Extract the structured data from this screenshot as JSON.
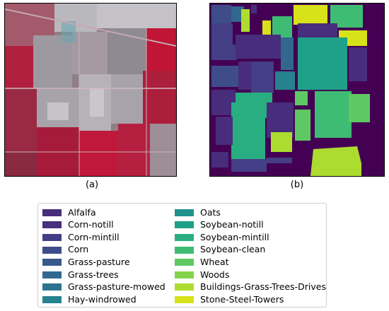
{
  "captions": {
    "a": "(a)",
    "b": "(b)"
  },
  "panel_a": {
    "description_icon": "false-color-satellite-image"
  },
  "panel_b": {
    "background_color": "#440154"
  },
  "legend": {
    "column1": [
      {
        "label": "Alfalfa",
        "color": "#472d7b"
      },
      {
        "label": "Corn-notill",
        "color": "#48307f"
      },
      {
        "label": "Corn-mintill",
        "color": "#433e85"
      },
      {
        "label": "Corn",
        "color": "#3e4c8a"
      },
      {
        "label": "Grass-pasture",
        "color": "#38598c"
      },
      {
        "label": "Grass-trees",
        "color": "#31688e"
      },
      {
        "label": "Grass-pasture-mowed",
        "color": "#2c738e"
      },
      {
        "label": "Hay-windrowed",
        "color": "#26828e"
      }
    ],
    "column2": [
      {
        "label": "Oats",
        "color": "#21918c"
      },
      {
        "label": "Soybean-notill",
        "color": "#1fa088"
      },
      {
        "label": "Soybean-mintill",
        "color": "#28ae80"
      },
      {
        "label": "Soybean-clean",
        "color": "#3fbc73"
      },
      {
        "label": "Wheat",
        "color": "#5ec962"
      },
      {
        "label": "Woods",
        "color": "#84d44b"
      },
      {
        "label": "Buildings-Grass-Trees-Drives",
        "color": "#addc30"
      },
      {
        "label": "Stone-Steel-Towers",
        "color": "#d8e219"
      }
    ]
  }
}
